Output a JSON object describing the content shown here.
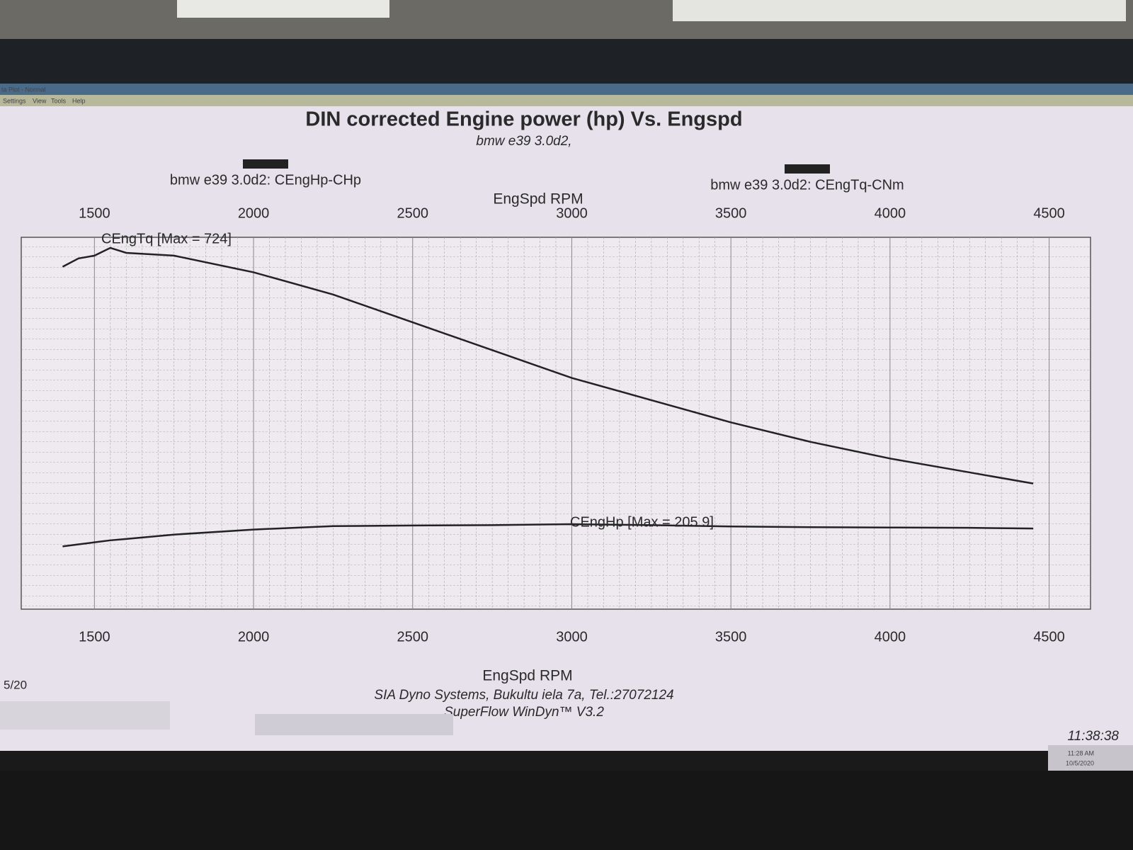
{
  "window": {
    "title": "ta Plot - Normal",
    "menu": [
      "Settings",
      "View",
      "Tools",
      "Help"
    ]
  },
  "chart_data": {
    "type": "line",
    "title": "DIN corrected Engine power (hp) Vs. Engspd",
    "subtitle": "bmw e39 3.0d2,",
    "x_label": "EngSpd RPM",
    "x": [
      1400,
      1450,
      1500,
      1550,
      1600,
      1750,
      2000,
      2250,
      2500,
      2750,
      3000,
      3250,
      3500,
      3750,
      4000,
      4250,
      4450
    ],
    "series": [
      {
        "name": "bmw e39 3.0d2: CEngHp-CHp",
        "color": "#222222",
        "axis": "y2",
        "values": [
          140,
          146,
          152,
          158,
          162,
          175,
          190,
          200,
          202,
          203,
          205.9,
          203,
          199,
          197,
          196,
          195,
          193
        ]
      },
      {
        "name": "bmw e39 3.0d2: CEngTq-CNm",
        "color": "#222222",
        "values": [
          690,
          705,
          710,
          724,
          715,
          710,
          680,
          640,
          590,
          540,
          490,
          450,
          410,
          375,
          345,
          320,
          300
        ]
      }
    ],
    "annotations": [
      "CEngTq [Max = 724]",
      "CEngHp [Max = 205.9]"
    ],
    "xlim": [
      1270,
      4630
    ],
    "xticks": [
      1500,
      2000,
      2500,
      3000,
      3500,
      4000,
      4500
    ],
    "ylim": [
      74,
      743
    ],
    "y2lim": [
      -46,
      1056
    ],
    "grid": true
  },
  "footer": {
    "company": "SIA Dyno Systems, Bukultu iela 7a, Tel.:27072124",
    "software": "SuperFlow WinDyn™ V3.2",
    "date_fragment": "5/20",
    "clock": "11:38:38"
  },
  "taskbar": {
    "time": "11:28 AM",
    "date": "10/5/2020"
  }
}
